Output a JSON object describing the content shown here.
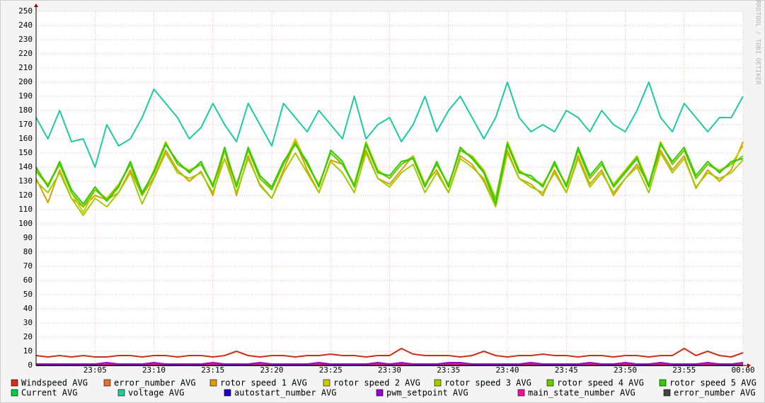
{
  "chart_data": {
    "type": "line",
    "watermark": "RRDTOOL / TOBI OETIKER",
    "x": [
      "23:00",
      "23:01",
      "23:02",
      "23:03",
      "23:04",
      "23:05",
      "23:06",
      "23:07",
      "23:08",
      "23:09",
      "23:10",
      "23:11",
      "23:12",
      "23:13",
      "23:14",
      "23:15",
      "23:16",
      "23:17",
      "23:18",
      "23:19",
      "23:20",
      "23:21",
      "23:22",
      "23:23",
      "23:24",
      "23:25",
      "23:26",
      "23:27",
      "23:28",
      "23:29",
      "23:30",
      "23:31",
      "23:32",
      "23:33",
      "23:34",
      "23:35",
      "23:36",
      "23:37",
      "23:38",
      "23:39",
      "23:40",
      "23:41",
      "23:42",
      "23:43",
      "23:44",
      "23:45",
      "23:46",
      "23:47",
      "23:48",
      "23:49",
      "23:50",
      "23:51",
      "23:52",
      "23:53",
      "23:54",
      "23:55",
      "23:56",
      "23:57",
      "23:58",
      "23:59",
      "00:00"
    ],
    "xlim": [
      "23:00",
      "00:00"
    ],
    "xticks": [
      "23:05",
      "23:10",
      "23:15",
      "23:20",
      "23:25",
      "23:30",
      "23:35",
      "23:40",
      "23:45",
      "23:50",
      "23:55",
      "00:00"
    ],
    "ylim": [
      0,
      250
    ],
    "yticks": [
      0,
      10,
      20,
      30,
      40,
      50,
      60,
      70,
      80,
      90,
      100,
      110,
      120,
      130,
      140,
      150,
      160,
      170,
      180,
      190,
      200,
      210,
      220,
      230,
      240,
      250
    ],
    "grid": true,
    "series": [
      {
        "name": "voltage AVG",
        "color": "#1ccca0",
        "values": [
          175,
          160,
          180,
          158,
          160,
          140,
          170,
          155,
          160,
          175,
          195,
          185,
          175,
          160,
          168,
          185,
          170,
          158,
          185,
          170,
          155,
          185,
          175,
          165,
          180,
          170,
          160,
          190,
          160,
          170,
          175,
          158,
          170,
          190,
          165,
          180,
          190,
          175,
          160,
          175,
          200,
          175,
          165,
          170,
          165,
          180,
          175,
          165,
          180,
          170,
          165,
          180,
          200,
          175,
          165,
          185,
          175,
          165,
          175,
          175,
          190
        ]
      },
      {
        "name": "rotor speed 1 AVG",
        "color": "#d9a000",
        "values": [
          132,
          115,
          138,
          118,
          112,
          120,
          117,
          122,
          138,
          120,
          133,
          152,
          138,
          130,
          137,
          120,
          152,
          120,
          148,
          127,
          118,
          138,
          158,
          138,
          122,
          145,
          142,
          128,
          152,
          132,
          128,
          138,
          148,
          128,
          138,
          122,
          148,
          142,
          130,
          112,
          152,
          132,
          128,
          120,
          138,
          122,
          148,
          128,
          138,
          120,
          132,
          142,
          128,
          152,
          138,
          148,
          125,
          138,
          130,
          138,
          158
        ]
      },
      {
        "name": "rotor speed 2 AVG",
        "color": "#cccc00",
        "values": [
          138,
          128,
          142,
          122,
          108,
          124,
          118,
          128,
          142,
          120,
          138,
          158,
          142,
          138,
          142,
          128,
          152,
          128,
          152,
          132,
          125,
          142,
          160,
          142,
          128,
          150,
          142,
          128,
          158,
          138,
          132,
          142,
          148,
          128,
          142,
          128,
          152,
          148,
          138,
          118,
          158,
          138,
          132,
          128,
          142,
          128,
          152,
          132,
          142,
          128,
          138,
          148,
          128,
          158,
          142,
          152,
          132,
          142,
          138,
          142,
          155
        ]
      },
      {
        "name": "rotor speed 3 AVG",
        "color": "#a0cc00",
        "values": [
          130,
          122,
          136,
          118,
          106,
          118,
          112,
          122,
          136,
          114,
          132,
          150,
          136,
          132,
          136,
          122,
          146,
          122,
          146,
          128,
          118,
          136,
          150,
          136,
          122,
          144,
          136,
          122,
          150,
          132,
          126,
          136,
          142,
          122,
          136,
          122,
          146,
          140,
          132,
          112,
          150,
          132,
          126,
          122,
          136,
          122,
          146,
          126,
          136,
          122,
          132,
          140,
          122,
          150,
          136,
          146,
          126,
          136,
          132,
          136,
          145
        ]
      },
      {
        "name": "rotor speed 4 AVG",
        "color": "#66cc00",
        "values": [
          137,
          127,
          142,
          122,
          112,
          124,
          117,
          127,
          142,
          120,
          137,
          157,
          142,
          137,
          142,
          127,
          152,
          127,
          152,
          132,
          124,
          142,
          157,
          142,
          127,
          150,
          142,
          127,
          157,
          137,
          132,
          142,
          147,
          127,
          142,
          127,
          152,
          147,
          137,
          117,
          157,
          137,
          132,
          127,
          142,
          127,
          152,
          132,
          142,
          127,
          137,
          147,
          127,
          157,
          142,
          152,
          132,
          142,
          137,
          142,
          148
        ]
      },
      {
        "name": "rotor speed 5 AVG",
        "color": "#33cc00",
        "values": [
          140,
          126,
          144,
          124,
          114,
          126,
          116,
          126,
          144,
          122,
          136,
          156,
          144,
          136,
          144,
          126,
          154,
          126,
          154,
          134,
          126,
          144,
          156,
          144,
          126,
          152,
          144,
          126,
          156,
          136,
          134,
          144,
          146,
          126,
          144,
          126,
          154,
          146,
          136,
          114,
          156,
          136,
          134,
          126,
          144,
          126,
          154,
          134,
          144,
          126,
          136,
          146,
          126,
          156,
          144,
          154,
          134,
          144,
          136,
          144,
          146
        ]
      },
      {
        "name": "Windspeed AVG",
        "color": "#cc3118",
        "values": [
          7,
          6,
          7,
          6,
          7,
          6,
          6,
          7,
          7,
          6,
          7,
          7,
          6,
          7,
          7,
          6,
          7,
          10,
          7,
          6,
          7,
          7,
          6,
          7,
          7,
          8,
          7,
          7,
          6,
          7,
          7,
          12,
          8,
          7,
          7,
          7,
          6,
          7,
          10,
          7,
          6,
          7,
          7,
          8,
          7,
          7,
          6,
          7,
          7,
          6,
          7,
          7,
          6,
          7,
          7,
          12,
          7,
          10,
          7,
          6,
          9
        ]
      },
      {
        "name": "error_number AVG",
        "color": "#ea6f2a",
        "values": [
          0,
          0,
          0,
          0,
          0,
          0,
          0,
          0,
          0,
          0,
          0,
          0,
          0,
          0,
          0,
          0,
          0,
          0,
          0,
          0,
          0,
          0,
          0,
          0,
          0,
          0,
          0,
          0,
          0,
          0,
          0,
          0,
          0,
          0,
          0,
          0,
          0,
          0,
          0,
          0,
          0,
          0,
          0,
          0,
          0,
          0,
          0,
          0,
          0,
          0,
          0,
          0,
          0,
          0,
          0,
          0,
          0,
          0,
          0,
          0,
          0
        ]
      },
      {
        "name": "Current AVG",
        "color": "#00cc44",
        "values": [
          0,
          0,
          0,
          0,
          0,
          0,
          0,
          0,
          0,
          0,
          0,
          0,
          0,
          0,
          0,
          0,
          0,
          0,
          0,
          0,
          0,
          0,
          0,
          0,
          0,
          0,
          0,
          0,
          0,
          0,
          0,
          0,
          0,
          0,
          0,
          0,
          0,
          0,
          0,
          0,
          0,
          0,
          0,
          0,
          0,
          0,
          0,
          0,
          0,
          0,
          0,
          0,
          0,
          0,
          0,
          0,
          0,
          0,
          0,
          0,
          0
        ]
      },
      {
        "name": "autostart_number AVG",
        "color": "#1c00cc",
        "values": [
          0,
          0,
          0,
          0,
          0,
          0,
          0,
          0,
          0,
          0,
          0,
          0,
          0,
          0,
          0,
          0,
          0,
          0,
          0,
          0,
          0,
          0,
          0,
          0,
          0,
          0,
          0,
          0,
          0,
          0,
          0,
          0,
          0,
          0,
          0,
          0,
          0,
          0,
          0,
          0,
          0,
          0,
          0,
          0,
          0,
          0,
          0,
          0,
          0,
          0,
          0,
          0,
          0,
          0,
          0,
          0,
          0,
          0,
          0,
          0,
          0
        ]
      },
      {
        "name": "error_number AVG",
        "color": "#444444",
        "values": [
          0,
          0,
          0,
          0,
          0,
          0,
          0,
          0,
          0,
          0,
          0,
          0,
          0,
          0,
          0,
          0,
          0,
          0,
          0,
          0,
          0,
          0,
          0,
          0,
          0,
          0,
          0,
          0,
          0,
          0,
          0,
          0,
          0,
          0,
          0,
          0,
          0,
          0,
          0,
          0,
          0,
          0,
          0,
          0,
          0,
          0,
          0,
          0,
          0,
          0,
          0,
          0,
          0,
          0,
          0,
          0,
          0,
          0,
          0,
          0,
          0
        ]
      },
      {
        "name": "main_state_number AVG",
        "color": "#ee1199",
        "values": [
          1,
          1,
          1,
          1,
          1,
          1,
          1,
          1,
          1,
          1,
          1,
          1,
          1,
          1,
          1,
          1,
          1,
          1,
          1,
          1,
          1,
          1,
          1,
          1,
          1,
          1,
          1,
          1,
          1,
          1,
          1,
          1,
          1,
          1,
          1,
          1,
          1,
          1,
          1,
          1,
          1,
          1,
          1,
          1,
          1,
          1,
          1,
          1,
          1,
          1,
          1,
          1,
          1,
          1,
          1,
          1,
          1,
          1,
          1,
          1,
          1
        ]
      },
      {
        "name": "pwm_setpoint AVG",
        "color": "#9900cc",
        "values": [
          1,
          1,
          1,
          1,
          1,
          1,
          2,
          1,
          1,
          1,
          2,
          1,
          1,
          1,
          1,
          2,
          1,
          1,
          1,
          2,
          1,
          1,
          1,
          1,
          2,
          1,
          1,
          1,
          1,
          2,
          1,
          2,
          1,
          1,
          1,
          2,
          2,
          1,
          1,
          1,
          1,
          1,
          2,
          1,
          1,
          1,
          1,
          2,
          1,
          1,
          2,
          1,
          1,
          2,
          1,
          1,
          1,
          2,
          1,
          1,
          2
        ]
      }
    ],
    "legend_order": [
      6,
      7,
      1,
      2,
      3,
      4,
      5,
      8,
      0,
      9,
      12,
      11,
      10
    ]
  }
}
